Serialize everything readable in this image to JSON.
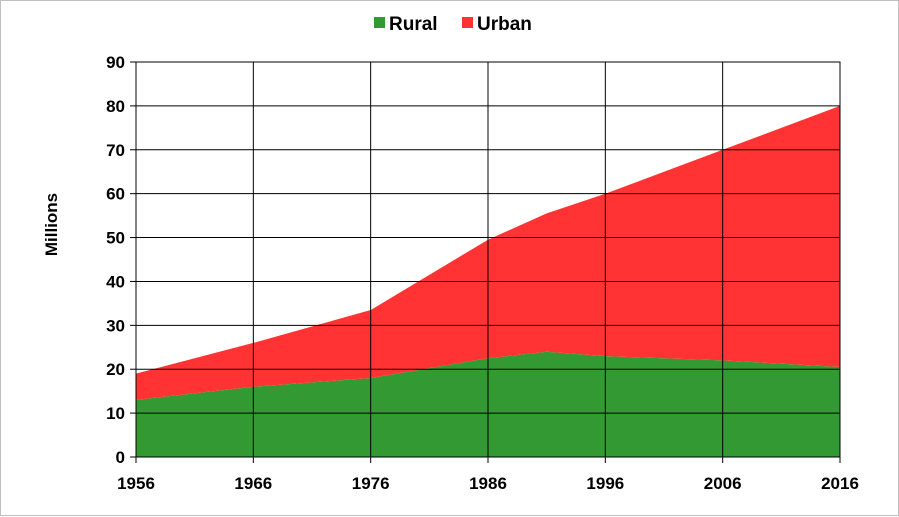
{
  "chart_data": {
    "type": "area",
    "stacked": true,
    "x": [
      1956,
      1966,
      1976,
      1986,
      1991,
      1996,
      2006,
      2016
    ],
    "series": [
      {
        "name": "Rural",
        "color": "#339933",
        "values": [
          13,
          16,
          18,
          22.5,
          24,
          23,
          22,
          20.5
        ]
      },
      {
        "name": "Urban",
        "color": "#ff3333",
        "values": [
          6,
          10,
          15.5,
          27,
          31.5,
          37,
          48,
          59.5
        ]
      }
    ],
    "xticks": [
      "1956",
      "1966",
      "1976",
      "1986",
      "1996",
      "2006",
      "2016"
    ],
    "yticks": [
      "0",
      "10",
      "20",
      "30",
      "40",
      "50",
      "60",
      "70",
      "80",
      "90"
    ],
    "xlim": [
      1956,
      2016
    ],
    "ylim": [
      0,
      90
    ],
    "ylabel": "Millions",
    "grid": true,
    "legend_position": "top-center"
  }
}
